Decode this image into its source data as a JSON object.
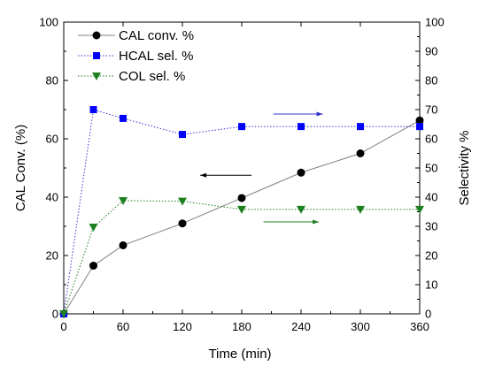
{
  "chart_data": {
    "type": "line",
    "xlabel": "Time (min)",
    "ylabel": "CAL Conv. (%)",
    "y2label": "Selectivity %",
    "xlim": [
      0,
      360
    ],
    "ylim": [
      0,
      100
    ],
    "y2lim": [
      0,
      100
    ],
    "x_ticks": [
      0,
      60,
      120,
      180,
      240,
      300,
      360
    ],
    "y_ticks": [
      0,
      20,
      40,
      60,
      80,
      100
    ],
    "y2_ticks": [
      0,
      10,
      20,
      30,
      40,
      50,
      60,
      70,
      80,
      90,
      100
    ],
    "grid": false,
    "legend_position": "top-left",
    "x": [
      0,
      30,
      60,
      120,
      180,
      240,
      300,
      360
    ],
    "series": [
      {
        "name": "CAL conv. %",
        "axis": "left",
        "marker": "circle",
        "line_style": "solid",
        "line_color": "#808080",
        "marker_color": "#000000",
        "values": [
          0,
          16.5,
          23.5,
          31,
          39.7,
          48.4,
          55,
          66.3
        ]
      },
      {
        "name": "HCAL sel. %",
        "axis": "right",
        "marker": "square",
        "line_style": "dotted",
        "line_color": "#3333cc",
        "marker_color": "#0000ff",
        "values": [
          0,
          70,
          67,
          61.5,
          64.2,
          64.2,
          64.2,
          64.2
        ]
      },
      {
        "name": "COL sel. %",
        "axis": "right",
        "marker": "triangle-down",
        "line_style": "dotted",
        "line_color": "#1e7f1e",
        "marker_color": "#1e7f1e",
        "values": [
          0,
          29.7,
          38.8,
          38.6,
          35.8,
          35.8,
          35.8,
          35.8
        ]
      }
    ],
    "annotations": [
      {
        "type": "arrow",
        "direction": "right",
        "color": "#3333cc",
        "x": [
          212,
          262
        ],
        "y": 68.5,
        "axis": "right"
      },
      {
        "type": "arrow",
        "direction": "left",
        "color": "#000000",
        "x": [
          190,
          138
        ],
        "y": 47.5,
        "axis": "right"
      },
      {
        "type": "arrow",
        "direction": "right",
        "color": "#1e7f1e",
        "x": [
          202,
          258
        ],
        "y": 31.5,
        "axis": "right"
      }
    ]
  }
}
